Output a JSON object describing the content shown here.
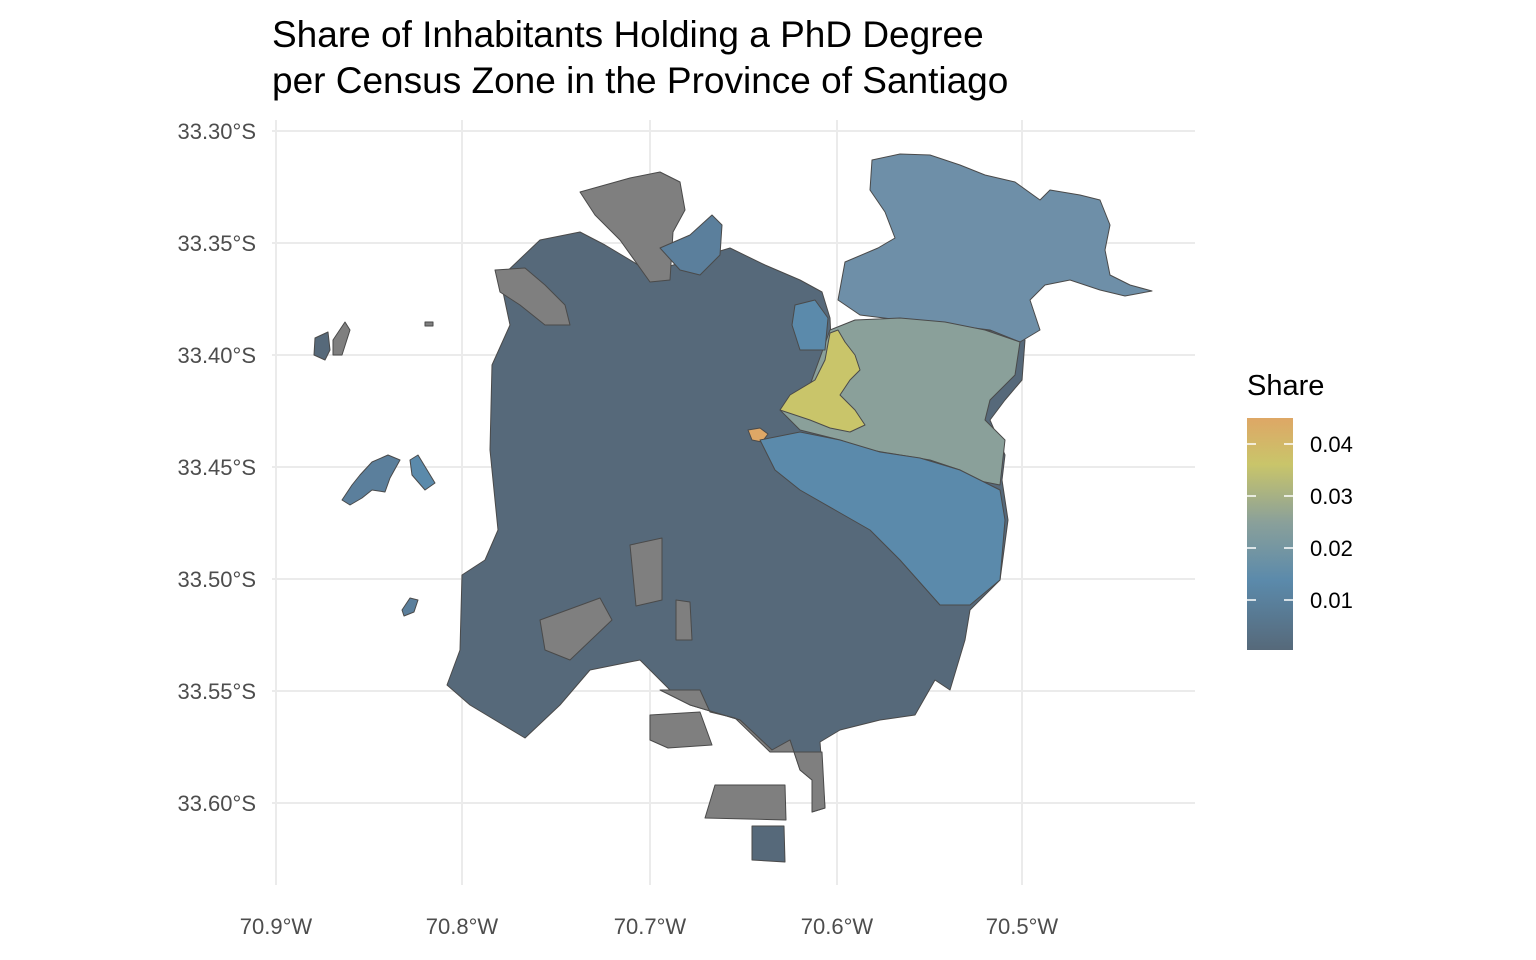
{
  "title": {
    "line1": "Share of Inhabitants Holding a PhD Degree",
    "line2": "per Census Zone in the Province of Santiago"
  },
  "axes": {
    "x_ticks": [
      "70.9°W",
      "70.8°W",
      "70.7°W",
      "70.6°W",
      "70.5°W"
    ],
    "y_ticks": [
      "33.30°S",
      "33.35°S",
      "33.40°S",
      "33.45°S",
      "33.50°S",
      "33.55°S",
      "33.60°S"
    ],
    "grid": true
  },
  "legend": {
    "title": "Share",
    "labels": [
      "0.04",
      "0.03",
      "0.02",
      "0.01"
    ],
    "colors": [
      "#56697a",
      "#5b8aab",
      "#8aa09a",
      "#c9c56a",
      "#dea766"
    ],
    "position": "right"
  },
  "map_colors": {
    "no_data": "#7f7f7f",
    "border": "#4a4a4a"
  }
}
